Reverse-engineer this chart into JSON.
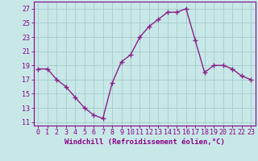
{
  "x": [
    0,
    1,
    2,
    3,
    4,
    5,
    6,
    7,
    8,
    9,
    10,
    11,
    12,
    13,
    14,
    15,
    16,
    17,
    18,
    19,
    20,
    21,
    22,
    23
  ],
  "y": [
    18.5,
    18.5,
    17.0,
    16.0,
    14.5,
    13.0,
    12.0,
    11.5,
    16.5,
    19.5,
    20.5,
    23.0,
    24.5,
    25.5,
    26.5,
    26.5,
    27.0,
    22.5,
    18.0,
    19.0,
    19.0,
    18.5,
    17.5,
    17.0
  ],
  "line_color": "#882288",
  "marker": "+",
  "marker_size": 4,
  "marker_lw": 1.0,
  "bg_color": "#c8e8e8",
  "grid_color": "#aacece",
  "xlabel": "Windchill (Refroidissement éolien,°C)",
  "ylabel_ticks": [
    11,
    13,
    15,
    17,
    19,
    21,
    23,
    25,
    27
  ],
  "xtick_labels": [
    "0",
    "1",
    "2",
    "3",
    "4",
    "5",
    "6",
    "7",
    "8",
    "9",
    "10",
    "11",
    "12",
    "13",
    "14",
    "15",
    "16",
    "17",
    "18",
    "19",
    "20",
    "21",
    "22",
    "23"
  ],
  "ylim": [
    10.5,
    28.0
  ],
  "xlim": [
    -0.5,
    23.5
  ],
  "tick_color": "#880088",
  "axis_color": "#880088",
  "xlabel_fontsize": 6.5,
  "tick_fontsize": 6.0,
  "linewidth": 1.0
}
